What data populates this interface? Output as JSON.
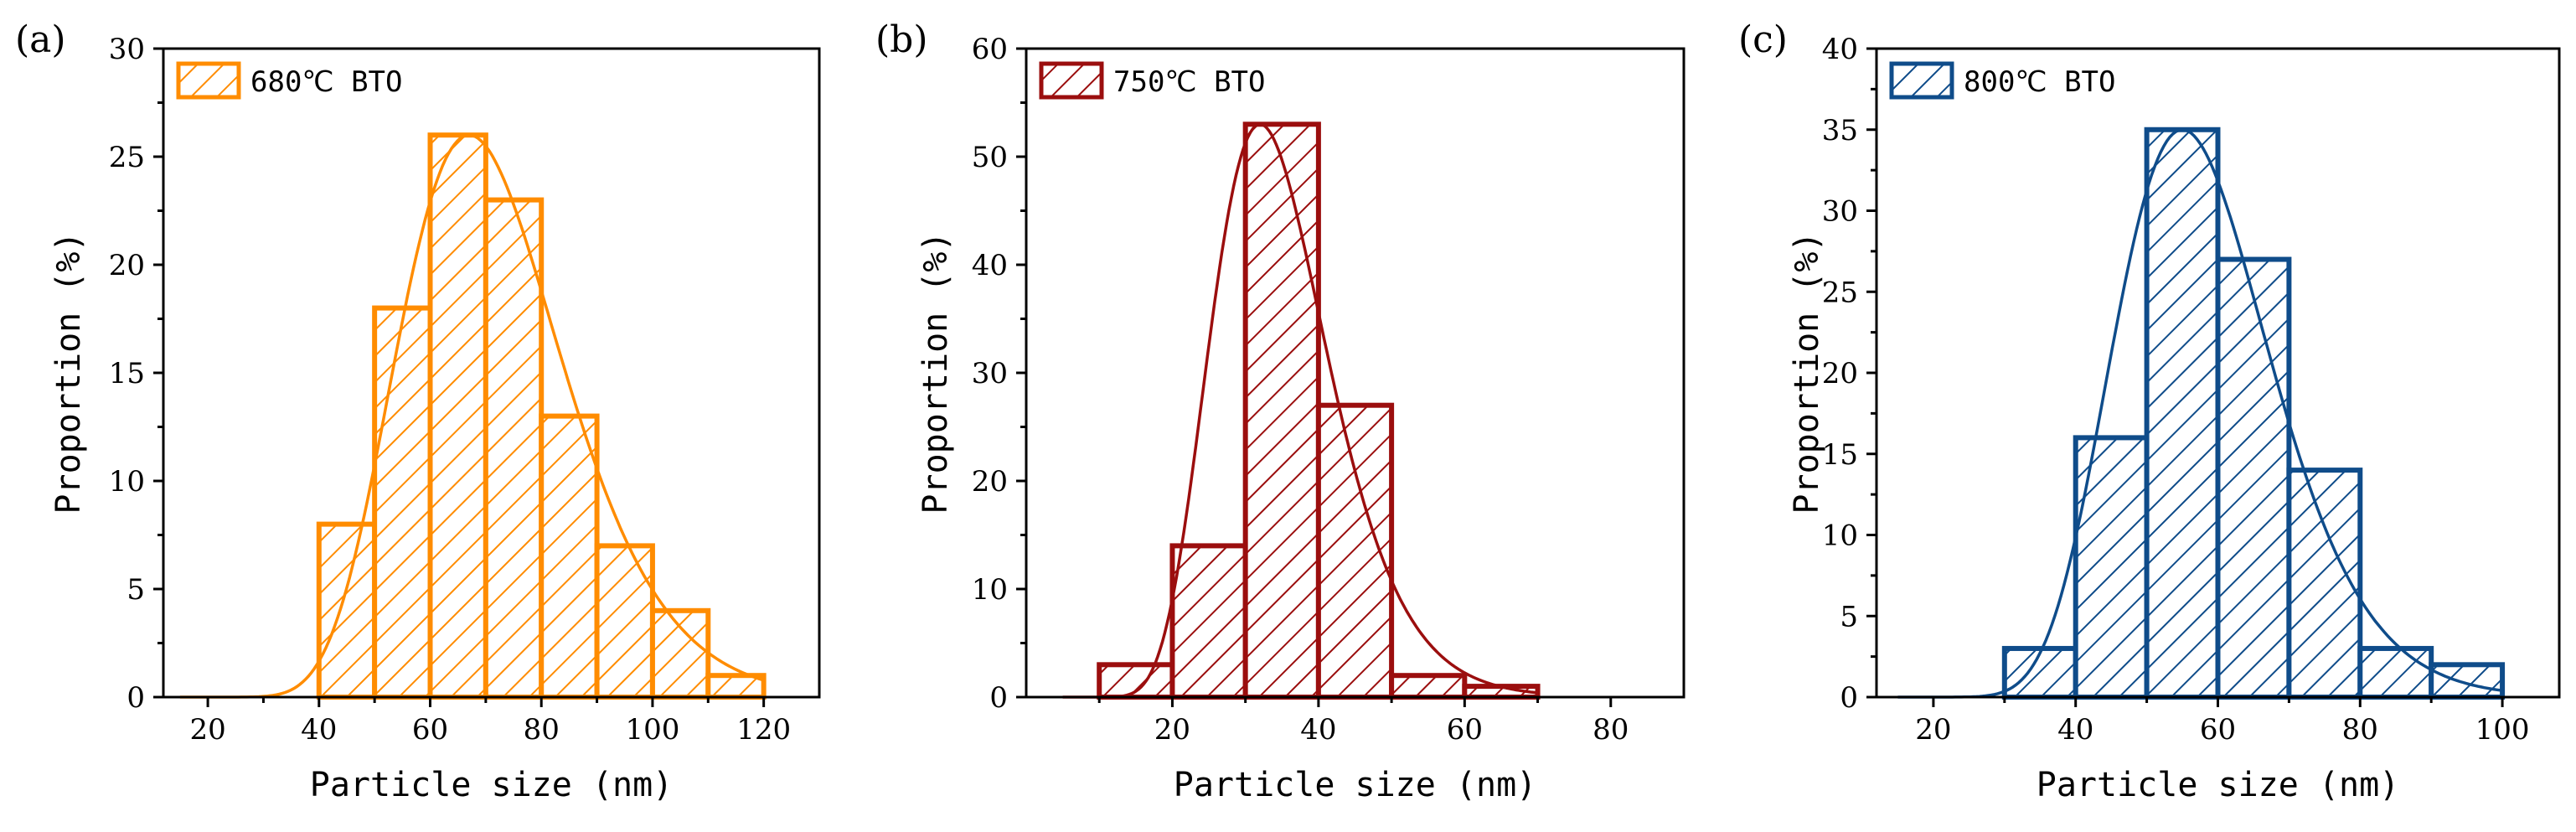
{
  "chart_data": [
    {
      "type": "bar",
      "panel_label": "(a)",
      "legend": "680℃ BTO",
      "color": "#FF8C00",
      "xlabel": "Particle size (nm)",
      "ylabel": "Proportion (%)",
      "xlim": [
        12,
        130
      ],
      "ylim": [
        0,
        30
      ],
      "xticks": [
        20,
        40,
        60,
        80,
        100,
        120
      ],
      "yticks": [
        0,
        5,
        10,
        15,
        20,
        25,
        30
      ],
      "bin_width": 10,
      "bins": [
        {
          "start": 40,
          "end": 50,
          "value": 8
        },
        {
          "start": 50,
          "end": 60,
          "value": 18
        },
        {
          "start": 60,
          "end": 70,
          "value": 26
        },
        {
          "start": 70,
          "end": 80,
          "value": 23
        },
        {
          "start": 80,
          "end": 90,
          "value": 13
        },
        {
          "start": 90,
          "end": 100,
          "value": 7
        },
        {
          "start": 100,
          "end": 110,
          "value": 4
        },
        {
          "start": 110,
          "end": 120,
          "value": 1
        }
      ],
      "fit": {
        "type": "lognormal",
        "mode": 67,
        "peak": 26,
        "sigma": 0.22,
        "x_range": [
          15,
          120
        ]
      }
    },
    {
      "type": "bar",
      "panel_label": "(b)",
      "legend": "750℃ BTO",
      "color": "#9B0E0E",
      "xlabel": "Particle size (nm)",
      "ylabel": "Proportion (%)",
      "xlim": [
        0,
        90
      ],
      "ylim": [
        0,
        60
      ],
      "xticks": [
        20,
        40,
        60,
        80
      ],
      "yticks": [
        0,
        10,
        20,
        30,
        40,
        50,
        60
      ],
      "bin_width": 10,
      "bins": [
        {
          "start": 10,
          "end": 20,
          "value": 3
        },
        {
          "start": 20,
          "end": 30,
          "value": 14
        },
        {
          "start": 30,
          "end": 40,
          "value": 53
        },
        {
          "start": 40,
          "end": 50,
          "value": 27
        },
        {
          "start": 50,
          "end": 60,
          "value": 2
        },
        {
          "start": 60,
          "end": 70,
          "value": 1
        }
      ],
      "fit": {
        "type": "lognormal",
        "mode": 32,
        "peak": 53,
        "sigma": 0.25,
        "x_range": [
          5,
          70
        ]
      }
    },
    {
      "type": "bar",
      "panel_label": "(c)",
      "legend": "800℃ BTO",
      "color": "#0F4C8A",
      "xlabel": "Particle size (nm)",
      "ylabel": "Proportion (%)",
      "xlim": [
        12,
        108
      ],
      "ylim": [
        0,
        40
      ],
      "xticks": [
        20,
        40,
        60,
        80,
        100
      ],
      "yticks": [
        0,
        5,
        10,
        15,
        20,
        25,
        30,
        35,
        40
      ],
      "bin_width": 10,
      "bins": [
        {
          "start": 30,
          "end": 40,
          "value": 3
        },
        {
          "start": 40,
          "end": 50,
          "value": 16
        },
        {
          "start": 50,
          "end": 60,
          "value": 35
        },
        {
          "start": 60,
          "end": 70,
          "value": 27
        },
        {
          "start": 70,
          "end": 80,
          "value": 14
        },
        {
          "start": 80,
          "end": 90,
          "value": 3
        },
        {
          "start": 90,
          "end": 100,
          "value": 2
        }
      ],
      "fit": {
        "type": "lognormal",
        "mode": 55,
        "peak": 35,
        "sigma": 0.2,
        "x_range": [
          15,
          100
        ]
      }
    }
  ]
}
